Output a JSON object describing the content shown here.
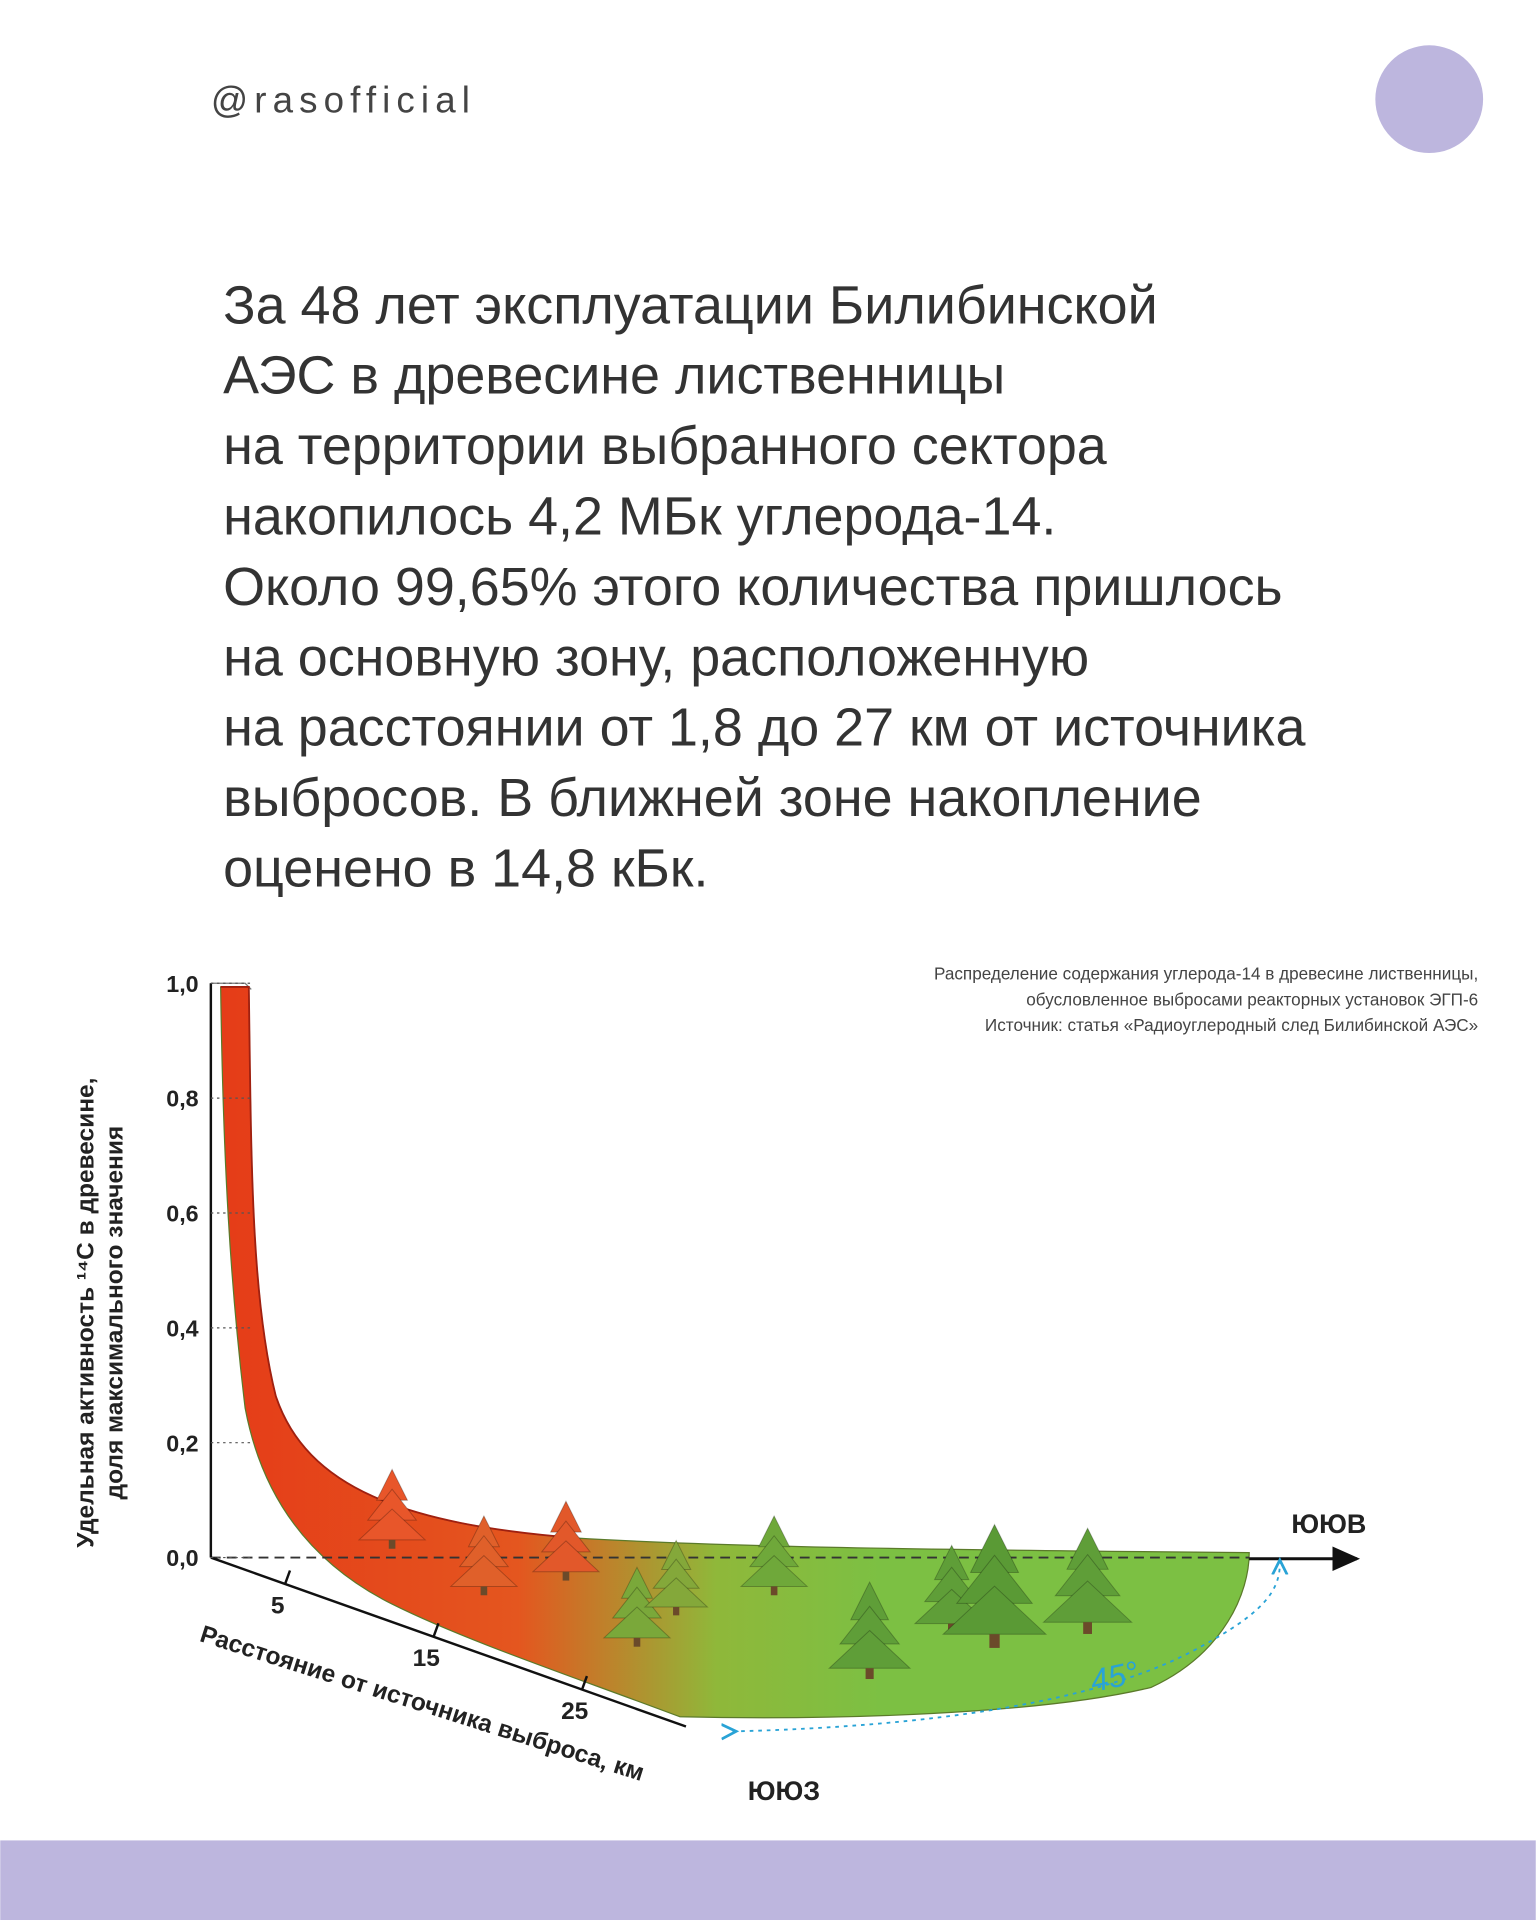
{
  "header": {
    "handle": "@rasofficial"
  },
  "body": {
    "lines": [
      "За 48 лет эксплуатации Билибинской",
      "АЭС в древесине лиственницы",
      "на территории выбранного сектора",
      "накопилось 4,2 МБк углерода-14.",
      "Около 99,65% этого количества пришлось",
      "на основную зону, расположенную",
      "на расстоянии от 1,8 до 27 км от источника",
      "выбросов. В ближней зоне накопление",
      "оценено в 14,8 кБк."
    ]
  },
  "figure": {
    "caption": [
      "Распределение содержания углерода-14 в древесине лиственницы,",
      "обусловленное выбросами реакторных установок ЭГП-6",
      "Источник: статья «Радиоуглеродный след Билибинской АЭС»"
    ],
    "y_axis_label": [
      "Удельная активность ¹⁴C в древесине,",
      "доля максимального значения"
    ],
    "x_axis_label": "Расстояние от источника выброса, км",
    "ylim": [
      0,
      1
    ],
    "yticks": [
      {
        "value": 0,
        "label": "0,0"
      },
      {
        "value": 0.2,
        "label": "0,2"
      },
      {
        "value": 0.4,
        "label": "0,4"
      },
      {
        "value": 0.6,
        "label": "0,6"
      },
      {
        "value": 0.8,
        "label": "0,8"
      },
      {
        "value": 1,
        "label": "1,0"
      }
    ],
    "xlim": [
      0,
      32
    ],
    "xticks": [
      5,
      15,
      25
    ],
    "direction_labels": {
      "east": "ЮЮВ",
      "south": "ЮЮЗ"
    },
    "angle_label": "45°"
  }
}
